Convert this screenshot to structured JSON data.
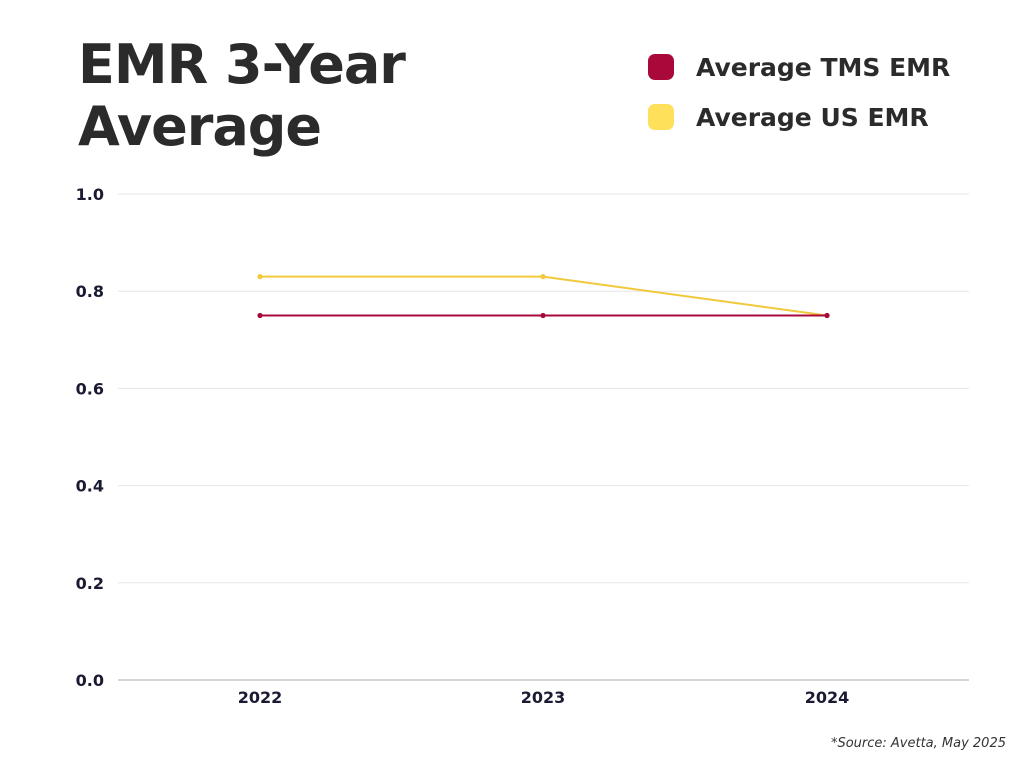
{
  "chart_data": {
    "type": "line",
    "title": "EMR 3-Year Average",
    "categories": [
      "2022",
      "2023",
      "2024"
    ],
    "series": [
      {
        "name": "Average TMS EMR",
        "color": "#a8093a",
        "values": [
          0.75,
          0.75,
          0.75
        ]
      },
      {
        "name": "Average US EMR",
        "color": "#f0c93c",
        "values": [
          0.83,
          0.83,
          0.75
        ]
      }
    ],
    "ylim": [
      0,
      1.0
    ],
    "yticks": [
      "0.0",
      "0.2",
      "0.4",
      "0.6",
      "0.8",
      "1.0"
    ],
    "grid": true,
    "legend": "top-right",
    "legend_swatch_colors": [
      "#a8093a",
      "#ffe05a"
    ]
  },
  "source": "*Source: Avetta, May 2025"
}
